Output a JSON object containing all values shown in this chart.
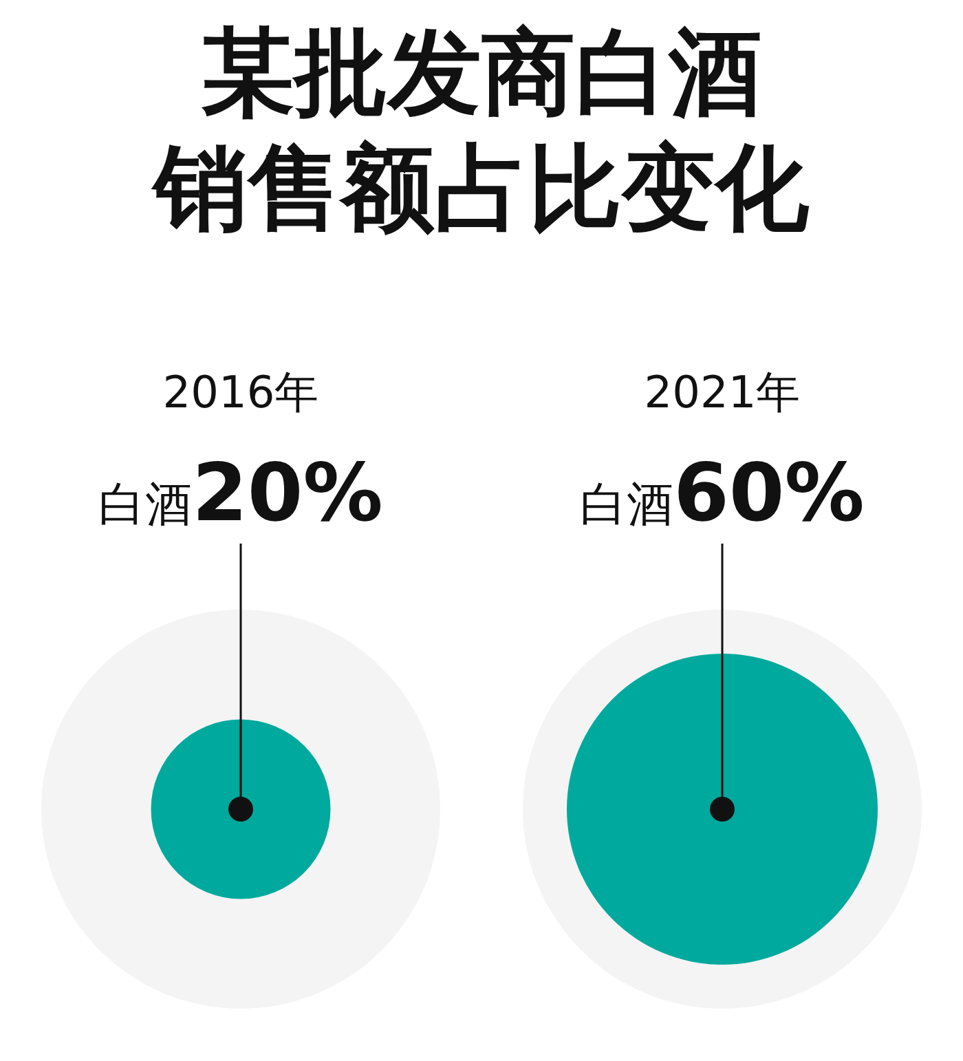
{
  "chart_data": {
    "type": "other",
    "title": "某批发商白酒销售额占比变化",
    "categories": [
      "2016年",
      "2021年"
    ],
    "series": [
      {
        "color": "#00a99d",
        "values": [
          20,
          60
        ],
        "value_labels": [
          "白酒20%",
          "白酒60%"
        ]
      }
    ]
  }
}
